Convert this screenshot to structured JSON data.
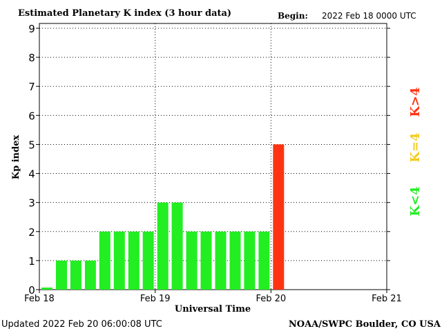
{
  "header": {
    "title": "Estimated Planetary K index (3 hour data)",
    "begin_label": "Begin:",
    "begin_value": "2022 Feb 18 0000 UTC"
  },
  "footer": {
    "updated": "Updated 2022 Feb 20 06:00:08 UTC",
    "credit": "NOAA/SWPC Boulder, CO USA"
  },
  "legend": {
    "low": "K<4",
    "mid": "K=4",
    "high": "K>4"
  },
  "colors": {
    "low": "#22ee22",
    "mid": "#f2cc1e",
    "high": "#ff3311"
  },
  "chart_data": {
    "type": "bar",
    "title": "Estimated Planetary K index (3 hour data)",
    "xlabel": "Universal Time",
    "ylabel": "Kp index",
    "ylim": [
      0,
      9
    ],
    "yticks": [
      "0",
      "1",
      "2",
      "3",
      "4",
      "5",
      "6",
      "7",
      "8",
      "9"
    ],
    "xticks": [
      "Feb 18",
      "Feb 19",
      "Feb 20",
      "Feb 21"
    ],
    "bins_per_day": 8,
    "grid": true,
    "values": [
      0,
      1,
      1,
      1,
      2,
      2,
      2,
      2,
      3,
      3,
      2,
      2,
      2,
      2,
      2,
      2,
      5
    ]
  }
}
